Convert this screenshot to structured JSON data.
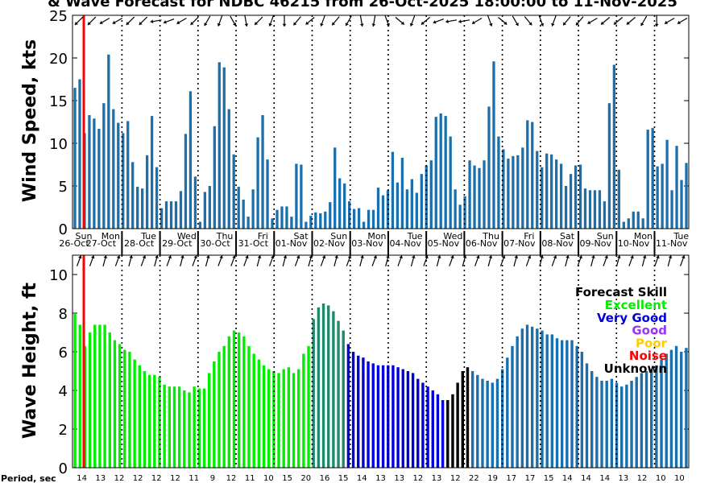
{
  "title": "& Wave Forecast for NDBC 46215 from 26-Oct-2025 18:00:00 to 11-Nov-2025",
  "wind_panel": {
    "ylabel": "Wind Speed, kts",
    "yticks": [
      0,
      5,
      10,
      15,
      20,
      25
    ]
  },
  "wave_panel": {
    "ylabel": "Wave Height, ft",
    "yticks": [
      0,
      2,
      4,
      6,
      8,
      10
    ]
  },
  "day_labels": [
    {
      "dow": "Sun",
      "date": "26-Oct"
    },
    {
      "dow": "Mon",
      "date": "27-Oct"
    },
    {
      "dow": "Tue",
      "date": "28-Oct"
    },
    {
      "dow": "Wed",
      "date": "29-Oct"
    },
    {
      "dow": "Thu",
      "date": "30-Oct"
    },
    {
      "dow": "Fri",
      "date": "31-Oct"
    },
    {
      "dow": "Sat",
      "date": "01-Nov"
    },
    {
      "dow": "Sun",
      "date": "02-Nov"
    },
    {
      "dow": "Mon",
      "date": "03-Nov"
    },
    {
      "dow": "Tue",
      "date": "04-Nov"
    },
    {
      "dow": "Wed",
      "date": "05-Nov"
    },
    {
      "dow": "Thu",
      "date": "06-Nov"
    },
    {
      "dow": "Fri",
      "date": "07-Nov"
    },
    {
      "dow": "Sat",
      "date": "08-Nov"
    },
    {
      "dow": "Sun",
      "date": "09-Nov"
    },
    {
      "dow": "Mon",
      "date": "10-Nov"
    },
    {
      "dow": "Tue",
      "date": "11-Nov"
    }
  ],
  "legend": {
    "title": "Forecast Skill",
    "items": [
      {
        "label": "Excellent",
        "color": "#00ee00"
      },
      {
        "label": "Very Good",
        "color": "#0000dd"
      },
      {
        "label": "Good",
        "color": "#9933ff"
      },
      {
        "label": "Poor",
        "color": "#ffcc00"
      },
      {
        "label": "Noise",
        "color": "#ff0000"
      },
      {
        "label": "Unknown",
        "color": "#000000"
      }
    ]
  },
  "period_label": "Period, sec",
  "period_ticks": [
    "14",
    "13",
    "12",
    "12",
    "12",
    "12",
    "11",
    "9",
    "12",
    "11",
    "10",
    "15",
    "20",
    "16",
    "15",
    "14",
    "13",
    "13",
    "12",
    "13",
    "12",
    "22",
    "19",
    "17",
    "17",
    "15",
    "14",
    "14",
    "14",
    "13",
    "12",
    "10",
    "10"
  ],
  "colors": {
    "wind_bar": "#1a6fad",
    "now_line": "#ff0000",
    "excellent": "#00ee00",
    "very_good": "#0000dd",
    "unknown": "#000000",
    "default_wave": "#1a6fad",
    "transition": "#1f8a6a"
  },
  "chart_data": [
    {
      "type": "bar",
      "title": "",
      "xlabel": "",
      "ylabel": "Wind Speed, kts",
      "ylim": [
        0,
        25
      ],
      "x_range_days": [
        0,
        16.2
      ],
      "series": [
        {
          "values": [
            16.5,
            17.5,
            11.2,
            13.3,
            12.9,
            11.7,
            14.7,
            20.4,
            14.0,
            12.4,
            11.2,
            12.6,
            7.8,
            4.9,
            4.7,
            8.6,
            13.2,
            7.2,
            2.4,
            3.2,
            3.2,
            3.2,
            4.4,
            11.1,
            16.1,
            6.1,
            0.8,
            4.3,
            5.0,
            12.0,
            19.5,
            18.9,
            14.0,
            8.7,
            4.9,
            3.4,
            1.4,
            4.6,
            10.7,
            13.3,
            8.1,
            1.2,
            2.2,
            2.6,
            2.6,
            1.4,
            7.6,
            7.5,
            0.8,
            1.5,
            1.9,
            1.8,
            2.0,
            3.1,
            9.5,
            5.9,
            5.3,
            3.2,
            2.3,
            2.4,
            0.8,
            2.2,
            2.2,
            4.8,
            3.9,
            4.5,
            9.0,
            5.4,
            8.3,
            4.6,
            5.8,
            4.2,
            6.4,
            7.4,
            8.0,
            13.1,
            13.5,
            13.2,
            10.8,
            4.6,
            2.8,
            3.8,
            8.0,
            7.4,
            7.1,
            8.0,
            14.3,
            19.6,
            10.8,
            9.3,
            8.2,
            8.5,
            8.6,
            9.5,
            12.7,
            12.5,
            9.1,
            7.2,
            8.8,
            8.7,
            8.1,
            7.6,
            5.0,
            6.4,
            7.4,
            7.5,
            4.7,
            4.5,
            4.5,
            4.5,
            3.2,
            14.7,
            19.2,
            6.9,
            0.8,
            1.2,
            2.0,
            2.0,
            1.2,
            11.6,
            11.8,
            7.3,
            7.6,
            10.4,
            4.5,
            9.7,
            5.7,
            7.7
          ]
        }
      ],
      "wind_directions_deg": [
        225,
        225,
        240,
        240,
        225,
        225,
        260,
        250,
        240,
        225,
        210,
        200,
        150,
        170,
        225,
        200,
        180,
        220,
        230,
        200,
        220,
        210,
        170,
        190,
        160,
        130,
        200,
        230,
        250,
        260,
        260,
        240,
        160,
        130,
        150,
        140,
        160,
        200,
        220,
        220,
        240,
        230,
        230,
        230,
        210,
        180,
        240,
        240
      ]
    },
    {
      "type": "bar",
      "title": "",
      "xlabel": "",
      "ylabel": "Wave Height, ft",
      "ylim": [
        0,
        11
      ],
      "x_range_days": [
        0,
        16.2
      ],
      "series": [
        {
          "values": [
            8.0,
            7.4,
            6.3,
            7.0,
            7.4,
            7.4,
            7.4,
            7.0,
            6.6,
            6.4,
            6.1,
            6.0,
            5.6,
            5.3,
            5.0,
            4.8,
            4.8,
            4.7,
            4.3,
            4.2,
            4.2,
            4.2,
            4.0,
            3.9,
            4.2,
            4.1,
            4.1,
            4.9,
            5.5,
            6.0,
            6.3,
            6.8,
            7.1,
            7.0,
            6.8,
            6.3,
            5.9,
            5.6,
            5.3,
            5.1,
            5.0,
            4.9,
            5.1,
            5.2,
            4.9,
            5.1,
            5.9,
            6.3,
            7.7,
            8.3,
            8.5,
            8.4,
            8.1,
            7.6,
            7.1,
            6.4,
            6.0,
            5.8,
            5.7,
            5.5,
            5.4,
            5.3,
            5.3,
            5.3,
            5.3,
            5.2,
            5.1,
            5.0,
            4.9,
            4.6,
            4.4,
            4.2,
            4.0,
            3.8,
            3.5,
            3.5,
            3.8,
            4.4,
            5.0,
            5.2,
            5.0,
            4.8,
            4.6,
            4.5,
            4.4,
            4.6,
            5.1,
            5.7,
            6.3,
            6.8,
            7.2,
            7.4,
            7.3,
            7.2,
            7.1,
            6.9,
            6.9,
            6.7,
            6.6,
            6.6,
            6.6,
            6.3,
            6.0,
            5.4,
            5.0,
            4.7,
            4.5,
            4.5,
            4.6,
            4.4,
            4.2,
            4.3,
            4.5,
            4.7,
            4.9,
            5.0,
            5.1,
            5.3,
            5.6,
            5.9,
            6.1,
            6.3,
            6.0,
            6.2
          ],
          "skill_segments": [
            {
              "label": "Excellent",
              "from": 0,
              "to": 48
            },
            {
              "label": "Transition",
              "from": 48,
              "to": 55
            },
            {
              "label": "Very Good",
              "from": 55,
              "to": 75
            },
            {
              "label": "Unknown",
              "from": 75,
              "to": 80
            },
            {
              "label": "Default",
              "from": 80,
              "to": 200
            }
          ]
        }
      ],
      "wave_directions_deg": [
        20,
        20,
        15,
        20,
        15,
        20,
        15,
        20,
        15,
        20,
        15,
        20,
        20,
        20,
        15,
        20,
        15,
        20,
        15,
        20,
        15,
        20,
        15,
        20,
        15,
        20,
        15,
        20,
        15,
        20,
        15,
        20,
        15,
        20,
        15,
        20,
        15,
        20,
        15,
        20,
        15,
        20,
        15,
        20,
        15,
        20,
        15,
        20
      ]
    }
  ]
}
